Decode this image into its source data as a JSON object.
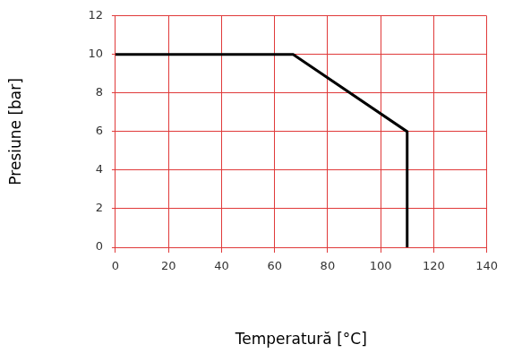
{
  "chart_data": {
    "type": "line",
    "x_label": "Temperatură [°C]",
    "y_label": "Presiune [bar]",
    "x": [
      0,
      67,
      110,
      110
    ],
    "values": [
      10,
      10,
      6,
      0
    ],
    "color": "#000000",
    "xlim": [
      0,
      140
    ],
    "xticks": [
      0,
      20,
      40,
      60,
      80,
      100,
      120,
      140
    ],
    "ylim": [
      0,
      12
    ],
    "yticks": [
      0,
      2,
      4,
      6,
      8,
      10,
      12
    ],
    "grid": true
  }
}
